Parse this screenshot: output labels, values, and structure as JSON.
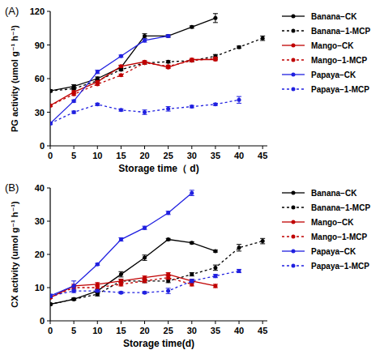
{
  "chart_data": [
    {
      "type": "line",
      "title": "(A)",
      "x_label": "Storage time（ d)",
      "y_label": "PG activity (umol g⁻¹ h⁻¹)",
      "x": [
        0,
        5,
        10,
        15,
        20,
        25,
        30,
        35,
        40,
        45
      ],
      "xlim": [
        0,
        46
      ],
      "xticks": [
        0,
        5,
        10,
        15,
        20,
        25,
        30,
        35,
        40,
        45
      ],
      "ylim": [
        0,
        120
      ],
      "yticks": [
        0,
        30,
        60,
        90,
        120
      ],
      "legend": "right",
      "series": [
        {
          "name": "Banana−CK",
          "color": "#000000",
          "line_style": "solid",
          "marker": "circle",
          "values": [
            49,
            53,
            60,
            70,
            98,
            98,
            106,
            114,
            null,
            null
          ],
          "errors": [
            1,
            1.5,
            1.5,
            1.5,
            2,
            1,
            1,
            4,
            null,
            null
          ]
        },
        {
          "name": "Banana−1-MCP",
          "color": "#000000",
          "line_style": "dotted",
          "marker": "circle",
          "values": [
            49,
            51,
            58,
            68,
            74,
            75,
            76,
            80,
            88,
            96
          ],
          "errors": [
            1,
            1,
            1,
            1,
            1,
            1,
            1,
            1.5,
            1,
            2
          ]
        },
        {
          "name": "Mango−CK",
          "color": "#c00000",
          "line_style": "solid",
          "marker": "circle",
          "values": [
            36,
            48,
            57,
            71,
            75,
            70,
            77,
            77,
            null,
            null
          ],
          "errors": [
            1,
            1,
            1,
            1,
            1,
            1,
            1,
            1,
            null,
            null
          ]
        },
        {
          "name": "Mango−1-MCP",
          "color": "#c00000",
          "line_style": "dotted",
          "marker": "circle",
          "values": [
            36,
            46,
            55,
            63,
            74,
            71,
            76,
            78,
            null,
            null
          ],
          "errors": [
            1,
            1,
            1,
            1,
            1,
            1,
            1,
            1,
            null,
            null
          ]
        },
        {
          "name": "Papaya−CK",
          "color": "#2020e0",
          "line_style": "solid",
          "marker": "circle",
          "values": [
            20,
            40,
            66,
            80,
            94,
            98,
            null,
            null,
            null,
            null
          ],
          "errors": [
            1,
            1,
            1.5,
            1,
            1.5,
            1,
            null,
            null,
            null,
            null
          ]
        },
        {
          "name": "Papaya−1-MCP",
          "color": "#2020e0",
          "line_style": "dotted",
          "marker": "circle",
          "values": [
            20,
            30,
            37,
            32,
            30,
            33,
            35,
            37,
            41,
            null
          ],
          "errors": [
            1,
            1,
            1,
            1,
            2,
            2,
            1,
            1,
            3,
            null
          ]
        }
      ]
    },
    {
      "type": "line",
      "title": "(B)",
      "x_label": "Storage time(d)",
      "y_label": "CX activity (umol g⁻¹ h⁻¹)",
      "x": [
        0,
        5,
        10,
        15,
        20,
        25,
        30,
        35,
        40,
        45
      ],
      "xlim": [
        0,
        46
      ],
      "xticks": [
        0,
        5,
        10,
        15,
        20,
        25,
        30,
        35,
        40,
        45
      ],
      "ylim": [
        0,
        40
      ],
      "yticks": [
        0,
        10,
        20,
        30,
        40
      ],
      "legend": "right",
      "series": [
        {
          "name": "Banana−CK",
          "color": "#000000",
          "line_style": "solid",
          "marker": "circle",
          "values": [
            5,
            6.5,
            9,
            14,
            19,
            24.5,
            23.5,
            21,
            null,
            null
          ],
          "errors": [
            0.3,
            0.3,
            0.5,
            0.8,
            0.8,
            0.3,
            0.3,
            0.3,
            null,
            null
          ]
        },
        {
          "name": "Banana−1-MCP",
          "color": "#000000",
          "line_style": "dotted",
          "marker": "circle",
          "values": [
            5,
            6.5,
            8,
            12,
            12,
            12,
            14,
            16,
            22,
            24
          ],
          "errors": [
            0.3,
            0.3,
            0.5,
            0.5,
            0.5,
            0.5,
            0.5,
            0.8,
            1,
            0.8
          ]
        },
        {
          "name": "Mango−CK",
          "color": "#c00000",
          "line_style": "solid",
          "marker": "circle",
          "values": [
            7,
            10.5,
            11,
            12,
            13,
            14,
            12,
            10.5,
            null,
            null
          ],
          "errors": [
            0.3,
            0.5,
            0.5,
            0.5,
            0.5,
            0.5,
            0.5,
            0.5,
            null,
            null
          ]
        },
        {
          "name": "Mango−1-MCP",
          "color": "#c00000",
          "line_style": "dotted",
          "marker": "circle",
          "values": [
            7,
            10,
            10,
            11,
            12,
            13,
            11,
            null,
            null,
            null
          ],
          "errors": [
            0.3,
            0.5,
            0.5,
            0.5,
            0.5,
            0.5,
            0.5,
            null,
            null,
            null
          ]
        },
        {
          "name": "Papaya−CK",
          "color": "#2020e0",
          "line_style": "solid",
          "marker": "circle",
          "values": [
            7.5,
            10.5,
            17,
            24.5,
            28,
            32.5,
            38.5,
            null,
            null,
            null
          ],
          "errors": [
            0.5,
            1.5,
            0.3,
            0.5,
            0.5,
            0.5,
            0.8,
            null,
            null,
            null
          ]
        },
        {
          "name": "Papaya−1-MCP",
          "color": "#2020e0",
          "line_style": "dotted",
          "marker": "circle",
          "values": [
            7.5,
            9,
            9,
            8.5,
            8.5,
            9,
            12,
            13.5,
            15,
            null
          ],
          "errors": [
            0.5,
            0.5,
            0.3,
            0.3,
            0.3,
            0.8,
            0.5,
            0.5,
            0.5,
            null
          ]
        }
      ]
    }
  ]
}
